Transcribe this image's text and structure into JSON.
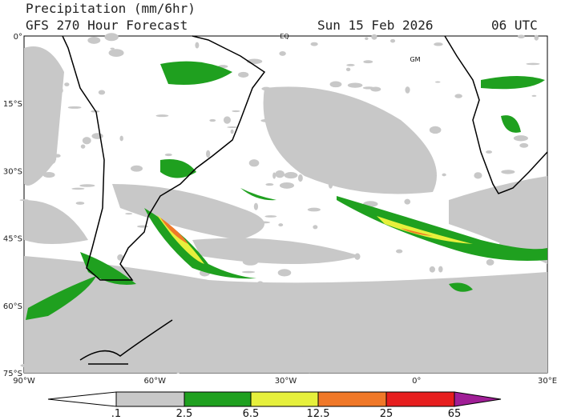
{
  "header": {
    "title": "Precipitation (mm/6hr)",
    "model_line": "GFS 270 Hour Forecast",
    "date": "Sun 15 Feb 2026",
    "time": "06 UTC"
  },
  "map": {
    "lat_labels": [
      "0°",
      "15°S",
      "30°S",
      "45°S",
      "60°S",
      "75°S"
    ],
    "lon_labels": [
      "90°W",
      "60°W",
      "30°W",
      "0°",
      "30°E"
    ],
    "markers": [
      "EQ",
      "GM"
    ]
  },
  "colorbar": {
    "labels": [
      ".1",
      "2.5",
      "6.5",
      "12.5",
      "25",
      "65"
    ]
  }
}
